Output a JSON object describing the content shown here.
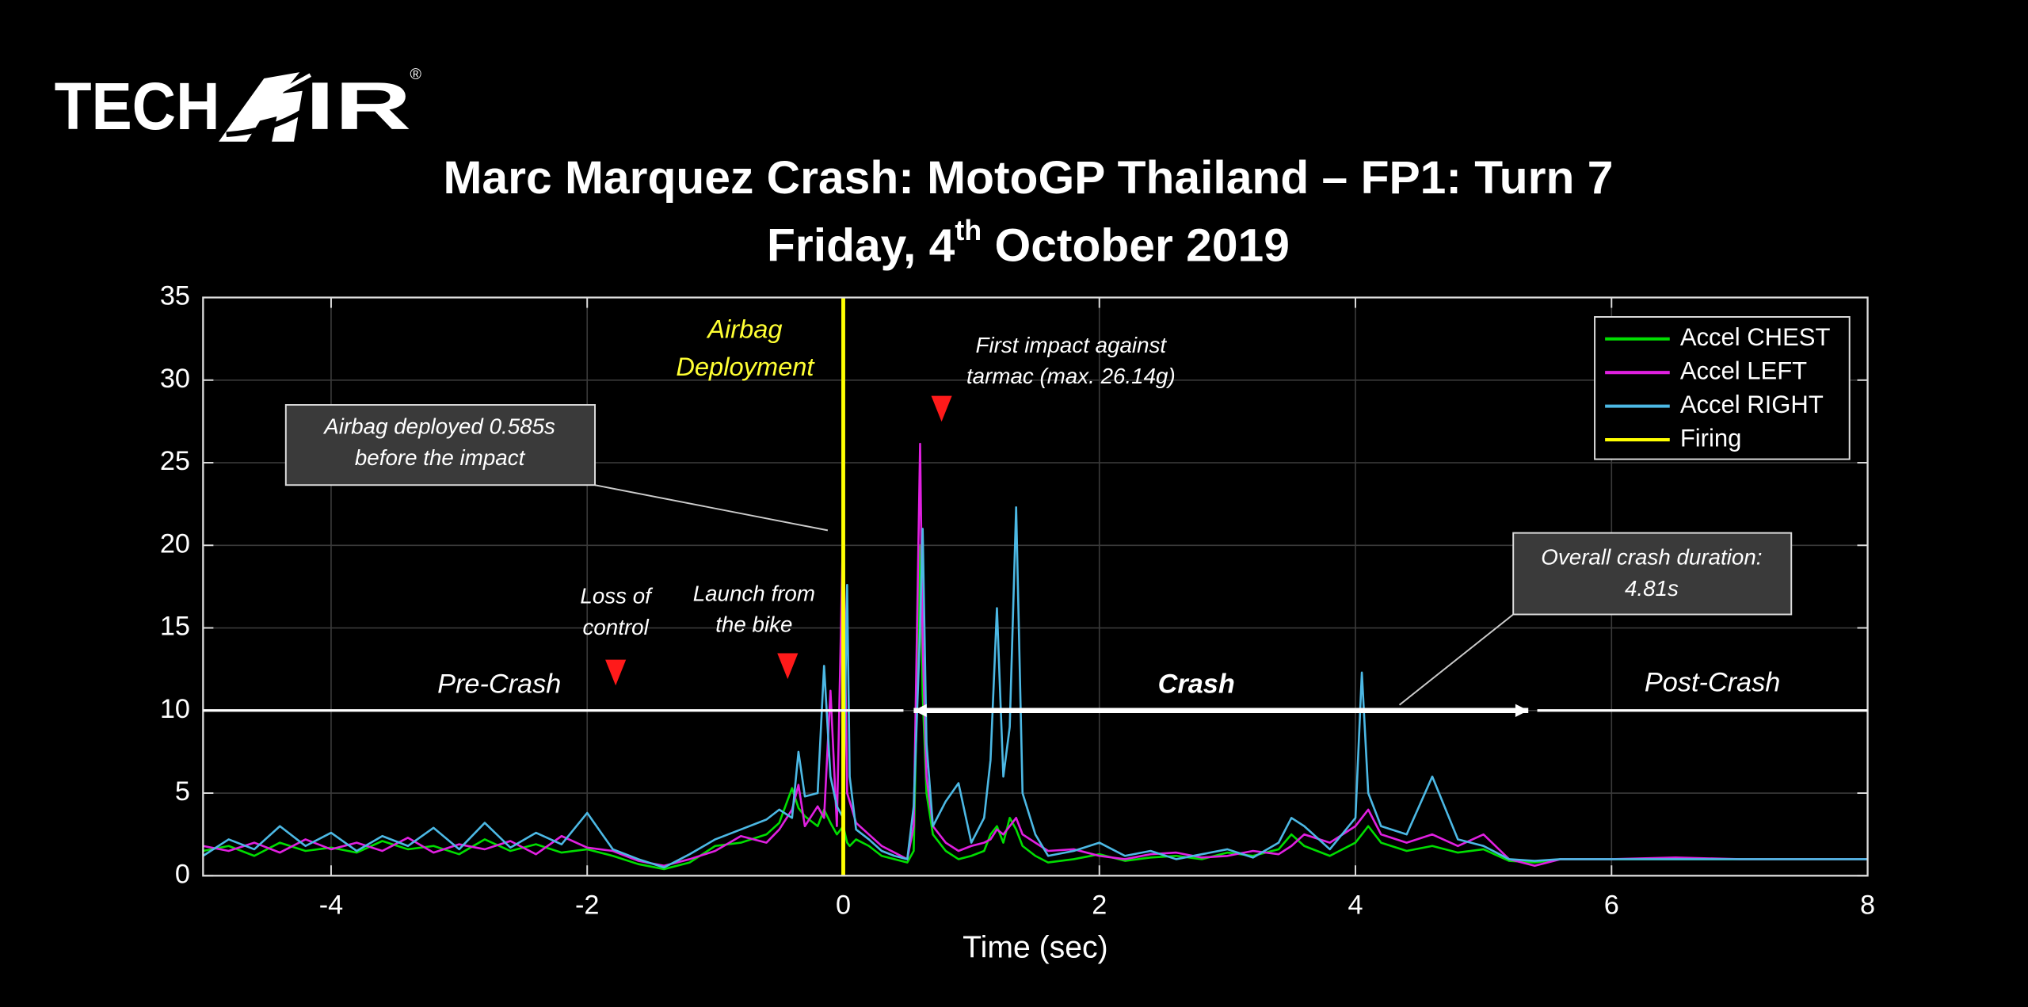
{
  "chart_data": {
    "type": "line",
    "logo": {
      "left": "TECH",
      "right": "IR",
      "mark": "®"
    },
    "title": "Marc Marquez Crash: MotoGP Thailand – FP1: Turn 7",
    "subtitle_parts": [
      "Friday, 4",
      "th",
      " October 2019"
    ],
    "xlabel": "Time (sec)",
    "xlim": [
      -5,
      8
    ],
    "xticks": [
      -4,
      -2,
      0,
      2,
      4,
      6,
      8
    ],
    "ylim": [
      0,
      35
    ],
    "yticks": [
      0,
      5,
      10,
      15,
      20,
      25,
      30,
      35
    ],
    "grid": true,
    "legend": "upper right",
    "x": [
      -5,
      -4.8,
      -4.6,
      -4.4,
      -4.2,
      -4,
      -3.8,
      -3.6,
      -3.4,
      -3.2,
      -3,
      -2.8,
      -2.6,
      -2.4,
      -2.2,
      -2,
      -1.8,
      -1.6,
      -1.4,
      -1.2,
      -1,
      -0.8,
      -0.6,
      -0.5,
      -0.4,
      -0.35,
      -0.3,
      -0.2,
      -0.15,
      -0.1,
      -0.05,
      0,
      0.03,
      0.05,
      0.1,
      0.2,
      0.3,
      0.4,
      0.5,
      0.55,
      0.6,
      0.62,
      0.65,
      0.7,
      0.8,
      0.9,
      1,
      1.1,
      1.15,
      1.2,
      1.25,
      1.3,
      1.35,
      1.4,
      1.5,
      1.6,
      1.8,
      2,
      2.2,
      2.4,
      2.6,
      2.8,
      3,
      3.2,
      3.4,
      3.5,
      3.6,
      3.8,
      4,
      4.05,
      4.1,
      4.2,
      4.4,
      4.6,
      4.8,
      5,
      5.2,
      5.4,
      5.6,
      6,
      6.5,
      7,
      7.5,
      8
    ],
    "series": [
      {
        "name": "Accel CHEST",
        "color": "#00dd00",
        "values": [
          1.5,
          1.8,
          1.2,
          2.0,
          1.5,
          1.7,
          1.4,
          2.1,
          1.6,
          1.8,
          1.3,
          2.2,
          1.5,
          1.9,
          1.4,
          1.6,
          1.2,
          0.7,
          0.4,
          0.8,
          1.8,
          2.0,
          2.5,
          3.2,
          5.3,
          4.1,
          3.6,
          3.0,
          4.0,
          3.2,
          2.5,
          3.0,
          2.0,
          1.8,
          2.2,
          1.8,
          1.2,
          1.0,
          0.8,
          1.5,
          20.0,
          11.0,
          5.0,
          2.5,
          1.5,
          1.0,
          1.2,
          1.5,
          2.5,
          3.0,
          2.0,
          3.5,
          2.8,
          1.8,
          1.2,
          0.8,
          1.0,
          1.3,
          0.9,
          1.1,
          1.2,
          1.0,
          1.4,
          1.2,
          1.6,
          2.5,
          1.8,
          1.2,
          2.0,
          2.5,
          3.0,
          2.0,
          1.5,
          1.8,
          1.4,
          1.6,
          0.9,
          0.8,
          1.0,
          1.0,
          1.0,
          1.0,
          1.0,
          1.0
        ]
      },
      {
        "name": "Accel LEFT",
        "color": "#e020e0",
        "values": [
          1.8,
          1.5,
          2.0,
          1.4,
          2.2,
          1.6,
          2.0,
          1.5,
          2.3,
          1.4,
          1.9,
          1.6,
          2.1,
          1.3,
          2.4,
          1.7,
          1.5,
          0.9,
          0.6,
          1.0,
          1.5,
          2.4,
          2.0,
          2.8,
          4.0,
          5.5,
          3.0,
          4.2,
          3.5,
          11.2,
          3.0,
          21.8,
          5.0,
          4.5,
          3.2,
          2.5,
          1.8,
          1.4,
          1.0,
          3.0,
          26.14,
          14.0,
          6.0,
          3.0,
          2.0,
          1.5,
          1.8,
          2.0,
          2.2,
          2.8,
          2.5,
          3.0,
          3.5,
          2.5,
          2.0,
          1.5,
          1.6,
          1.2,
          1.0,
          1.3,
          1.4,
          1.1,
          1.2,
          1.5,
          1.3,
          1.8,
          2.5,
          2.0,
          3.0,
          3.5,
          4.0,
          2.5,
          2.0,
          2.5,
          1.8,
          2.5,
          1.0,
          0.6,
          1.0,
          1.0,
          1.1,
          1.0,
          1.0,
          1.0
        ]
      },
      {
        "name": "Accel RIGHT",
        "color": "#4cb8e4",
        "values": [
          1.2,
          2.2,
          1.6,
          3.0,
          1.8,
          2.6,
          1.5,
          2.4,
          1.8,
          2.9,
          1.6,
          3.2,
          1.7,
          2.6,
          1.9,
          3.8,
          1.6,
          1.0,
          0.5,
          1.3,
          2.2,
          2.8,
          3.4,
          4.0,
          3.5,
          7.5,
          4.8,
          5.0,
          12.7,
          6.0,
          4.2,
          3.5,
          17.6,
          6.0,
          2.8,
          2.2,
          1.5,
          1.2,
          1.0,
          4.2,
          15.0,
          21.0,
          8.0,
          3.0,
          4.5,
          5.6,
          2.0,
          3.5,
          7.0,
          16.2,
          6.0,
          9.0,
          22.3,
          5.0,
          2.5,
          1.2,
          1.5,
          2.0,
          1.2,
          1.5,
          1.0,
          1.3,
          1.6,
          1.1,
          2.0,
          3.5,
          3.0,
          1.6,
          3.5,
          12.3,
          5.0,
          3.0,
          2.5,
          6.0,
          2.2,
          1.8,
          1.0,
          0.9,
          1.0,
          1.0,
          1.0,
          1.0,
          1.0,
          1.0
        ]
      },
      {
        "name": "Firing",
        "color": "#ffff00",
        "x": [
          0,
          0
        ],
        "values": [
          0,
          35
        ]
      }
    ],
    "phase_level": 10,
    "phases": [
      {
        "label": "Pre-Crash",
        "start": -5,
        "end": 0.47
      },
      {
        "label": "Crash",
        "start": 0.55,
        "end": 5.35
      },
      {
        "label": "Post-Crash",
        "start": 5.42,
        "end": 8
      }
    ],
    "annotations": [
      {
        "lines": [
          "Airbag",
          "Deployment"
        ]
      },
      {
        "lines": [
          "First impact against",
          "tarmac (max. 26.14g)"
        ]
      },
      {
        "lines": [
          "Airbag deployed 0.585s",
          "before the impact"
        ]
      },
      {
        "lines": [
          "Loss of",
          "control"
        ]
      },
      {
        "lines": [
          "Launch from",
          "the bike"
        ]
      },
      {
        "lines": [
          "Overall crash duration:",
          "4.81s"
        ]
      }
    ]
  }
}
